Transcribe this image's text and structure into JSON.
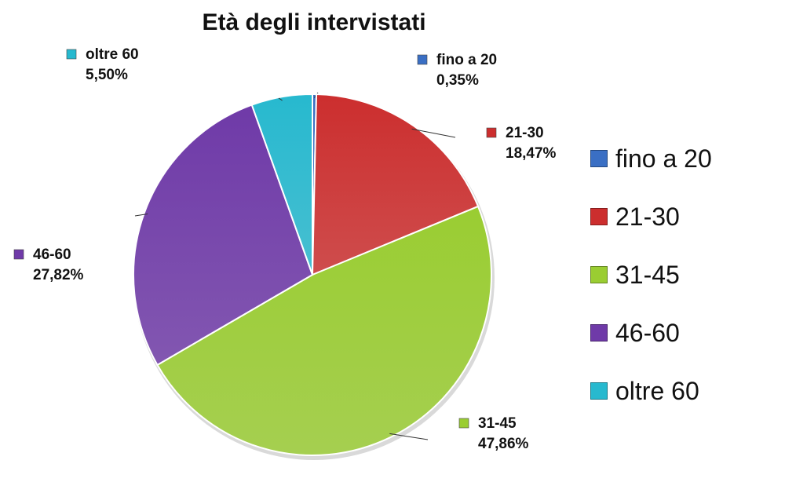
{
  "chart_data": {
    "type": "pie",
    "title": "Età degli intervistati",
    "categories": [
      "fino a 20",
      "21-30",
      "31-45",
      "46-60",
      "oltre 60"
    ],
    "values": [
      0.35,
      18.47,
      47.86,
      27.82,
      5.5
    ],
    "value_labels": [
      "0,35%",
      "18,47%",
      "47,86%",
      "27,82%",
      "5,50%"
    ],
    "colors": [
      "#3a6fc4",
      "#cc2e2e",
      "#9acd32",
      "#6f3aa8",
      "#27b9cf"
    ],
    "legend_position": "right"
  }
}
